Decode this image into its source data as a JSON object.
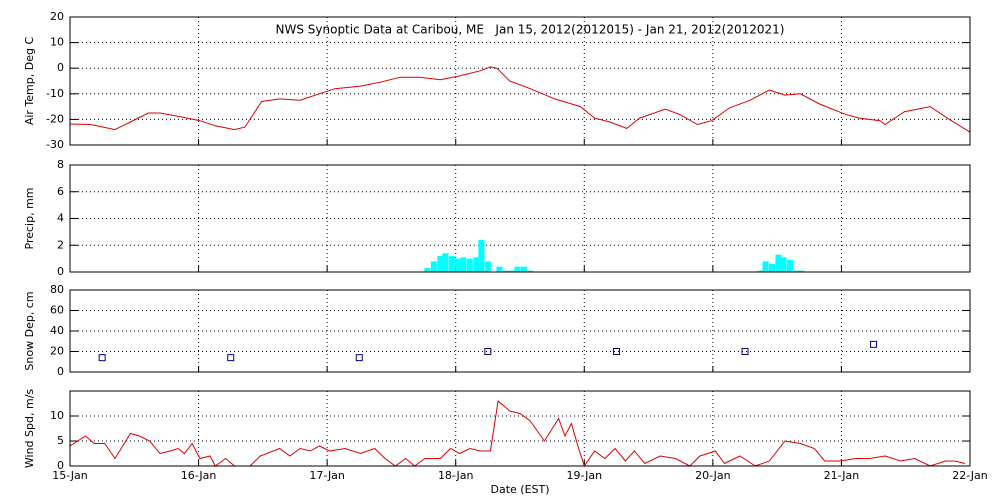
{
  "chart_data": [
    {
      "type": "line",
      "title": "NWS Synoptic Data at Caribou, ME   Jan 15, 2012(2012015) - Jan 21, 2012(2012021)",
      "y_label": "Air Temp, Deg C",
      "xlim": [
        0,
        7
      ],
      "xticks": [
        0,
        1,
        2,
        3,
        4,
        5,
        6,
        7
      ],
      "ylim": [
        -30,
        20
      ],
      "yticks": [
        -30,
        -20,
        -10,
        0,
        10,
        20
      ],
      "grid": true,
      "series": [
        {
          "color": "#dd0000",
          "x": [
            0,
            0.16,
            0.35,
            0.47,
            0.61,
            0.7,
            0.86,
            1.01,
            1.13,
            1.28,
            1.36,
            1.49,
            1.63,
            1.79,
            1.94,
            2.06,
            2.26,
            2.41,
            2.57,
            2.72,
            2.88,
            3.03,
            3.19,
            3.27,
            3.32,
            3.42,
            3.58,
            3.77,
            3.97,
            4.08,
            4.2,
            4.33,
            4.43,
            4.63,
            4.74,
            4.88,
            4.99,
            5.13,
            5.29,
            5.44,
            5.56,
            5.68,
            5.83,
            6.03,
            6.14,
            6.3,
            6.34,
            6.49,
            6.69,
            6.84,
            7.0
          ],
          "values": [
            -21.8,
            -22,
            -24,
            -21,
            -17.5,
            -17.5,
            -19,
            -20.5,
            -22.5,
            -24,
            -23,
            -13,
            -12,
            -12.5,
            -10,
            -8,
            -7,
            -5.5,
            -3.5,
            -3.5,
            -4.5,
            -3,
            -1,
            0.5,
            0,
            -5,
            -8,
            -12,
            -15,
            -19.5,
            -21,
            -23.5,
            -19.5,
            -16,
            -18,
            -22,
            -20.5,
            -15.5,
            -12.5,
            -8.5,
            -10.5,
            -10,
            -14,
            -18,
            -19.5,
            -20.5,
            -22,
            -17,
            -15,
            -20,
            -25
          ]
        }
      ]
    },
    {
      "type": "bar",
      "y_label": "Precip, mm",
      "xlim": [
        0,
        7
      ],
      "xticks": [
        0,
        1,
        2,
        3,
        4,
        5,
        6,
        7
      ],
      "ylim": [
        0,
        8
      ],
      "yticks": [
        0,
        2,
        4,
        6,
        8
      ],
      "grid": true,
      "series": [
        {
          "color": "#00ffff",
          "x": [
            2.78,
            2.83,
            2.88,
            2.92,
            2.97,
            3.02,
            3.06,
            3.11,
            3.16,
            3.2,
            3.25,
            3.34,
            3.39,
            3.44,
            3.48,
            3.53,
            3.58,
            5.37,
            5.41,
            5.46,
            5.51,
            5.55,
            5.6,
            5.65,
            5.69
          ],
          "values": [
            0.3,
            0.8,
            1.2,
            1.4,
            1.2,
            1.0,
            1.1,
            1.0,
            1.1,
            2.4,
            0.8,
            0.4,
            0.1,
            0.1,
            0.4,
            0.4,
            0.1,
            0.1,
            0.8,
            0.6,
            1.3,
            1.1,
            0.9,
            0.1,
            0.1
          ]
        }
      ]
    },
    {
      "type": "scatter",
      "y_label": "Snow Dep, cm",
      "xlim": [
        0,
        7
      ],
      "xticks": [
        0,
        1,
        2,
        3,
        4,
        5,
        6,
        7
      ],
      "ylim": [
        0,
        80
      ],
      "yticks": [
        0,
        20,
        40,
        60,
        80
      ],
      "grid": true,
      "series": [
        {
          "color": "#000080",
          "x": [
            0.25,
            1.25,
            2.25,
            3.25,
            4.25,
            5.25,
            6.25
          ],
          "values": [
            14,
            14,
            14,
            20,
            20,
            20,
            27
          ]
        }
      ]
    },
    {
      "type": "line",
      "y_label": "Wind Spd, m/s",
      "x_label": "Date (EST)",
      "xlim": [
        0,
        7
      ],
      "xticks": [
        {
          "value": 0,
          "label": "15-Jan"
        },
        {
          "value": 1,
          "label": "16-Jan"
        },
        {
          "value": 2,
          "label": "17-Jan"
        },
        {
          "value": 3,
          "label": "18-Jan"
        },
        {
          "value": 4,
          "label": "19-Jan"
        },
        {
          "value": 5,
          "label": "20-Jan"
        },
        {
          "value": 6,
          "label": "21-Jan"
        },
        {
          "value": 7,
          "label": "22-Jan"
        }
      ],
      "ylim": [
        0,
        15
      ],
      "yticks": [
        0,
        5,
        10
      ],
      "grid": true,
      "series": [
        {
          "color": "#dd0000",
          "x": [
            0,
            0.12,
            0.19,
            0.27,
            0.35,
            0.47,
            0.54,
            0.62,
            0.7,
            0.78,
            0.84,
            0.89,
            0.95,
            1.01,
            1.09,
            1.13,
            1.21,
            1.28,
            1.4,
            1.48,
            1.63,
            1.71,
            1.79,
            1.87,
            1.94,
            2.02,
            2.14,
            2.26,
            2.37,
            2.45,
            2.53,
            2.61,
            2.68,
            2.76,
            2.88,
            2.96,
            3.03,
            3.11,
            3.19,
            3.27,
            3.33,
            3.42,
            3.5,
            3.58,
            3.69,
            3.8,
            3.85,
            3.9,
            3.95,
            4.0,
            4.08,
            4.16,
            4.24,
            4.32,
            4.39,
            4.47,
            4.59,
            4.71,
            4.82,
            4.9,
            5.02,
            5.09,
            5.21,
            5.33,
            5.44,
            5.56,
            5.68,
            5.79,
            5.87,
            5.99,
            6.11,
            6.22,
            6.34,
            6.46,
            6.57,
            6.69,
            6.81,
            6.88,
            6.96
          ],
          "values": [
            4,
            6,
            4.5,
            4.5,
            1.5,
            6.5,
            6,
            5,
            2.5,
            3,
            3.5,
            2.5,
            4.5,
            1.5,
            2,
            0,
            1.5,
            0,
            0,
            2,
            3.5,
            2,
            3.5,
            3,
            4,
            3,
            3.5,
            2.5,
            3.5,
            1.5,
            0,
            1.5,
            0,
            1.5,
            1.5,
            3.5,
            2.5,
            3.5,
            3,
            3,
            13,
            11,
            10.5,
            9,
            5,
            9.5,
            6,
            8.5,
            4,
            0,
            3,
            1.5,
            3.5,
            1,
            3,
            0.5,
            2,
            1.5,
            0,
            2,
            3,
            0.5,
            2,
            0,
            1,
            5,
            4.5,
            3.5,
            1,
            1,
            1.5,
            1.5,
            2,
            1,
            1.5,
            0,
            1,
            1,
            0.5
          ]
        }
      ]
    }
  ]
}
